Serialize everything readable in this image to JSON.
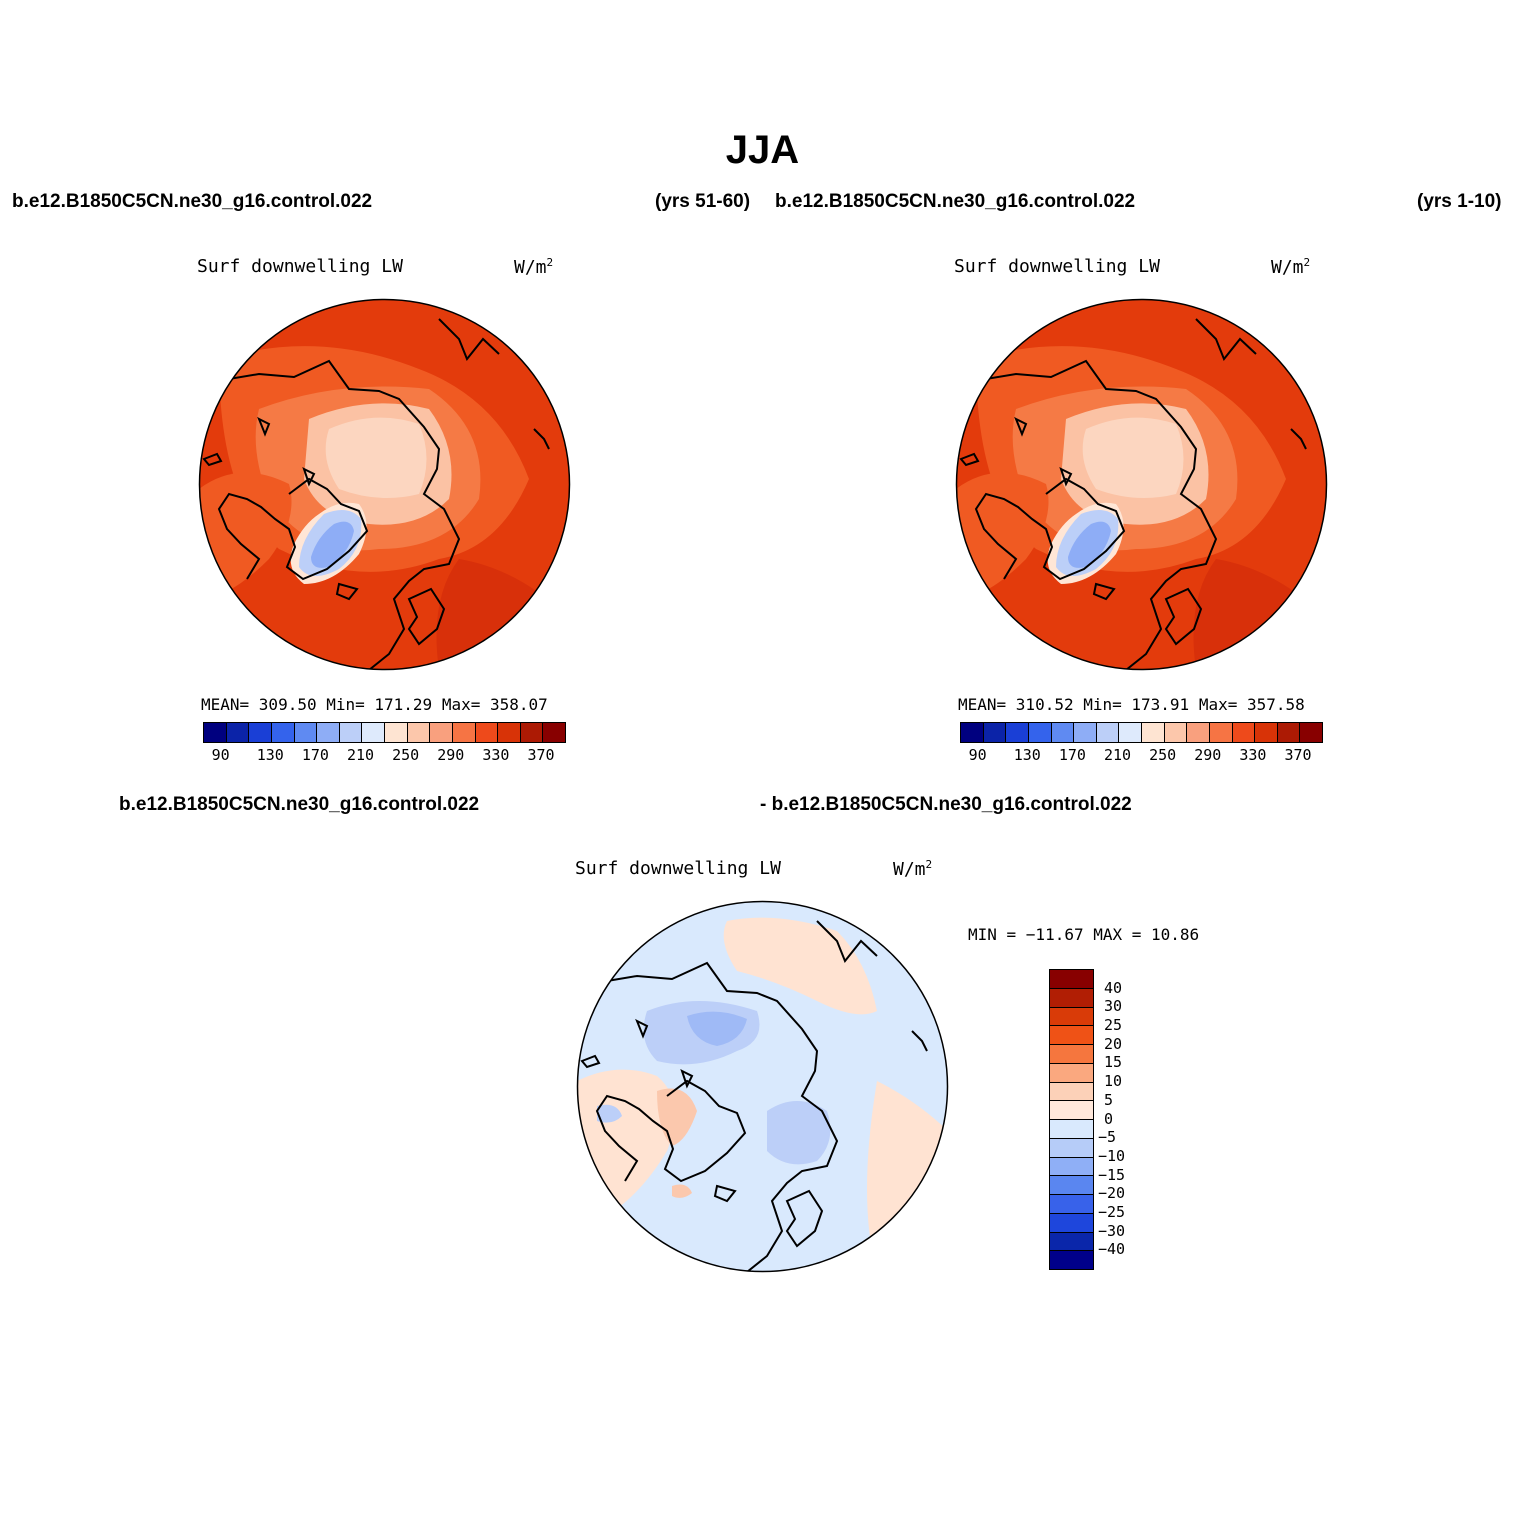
{
  "figure": {
    "title": "JJA"
  },
  "panels": [
    {
      "case": "b.e12.B1850C5CN.ne30_g16.control.022",
      "years": "(yrs 51-60)",
      "variable": "Surf downwelling LW",
      "units": "W/m",
      "units_sup": "2",
      "stats": "MEAN= 309.50   Min= 171.29   Max= 358.07",
      "colorbar_ticks": [
        "90",
        "130",
        "170",
        "210",
        "250",
        "290",
        "330",
        "370"
      ]
    },
    {
      "case": "b.e12.B1850C5CN.ne30_g16.control.022",
      "years": "(yrs 1-10)",
      "variable": "Surf downwelling LW",
      "units": "W/m",
      "units_sup": "2",
      "stats": "MEAN= 310.52   Min= 173.91   Max= 357.58",
      "colorbar_ticks": [
        "90",
        "130",
        "170",
        "210",
        "250",
        "290",
        "330",
        "370"
      ]
    }
  ],
  "difference": {
    "case_left": "b.e12.B1850C5CN.ne30_g16.control.022",
    "case_right": "- b.e12.B1850C5CN.ne30_g16.control.022",
    "variable": "Surf downwelling LW",
    "units": "W/m",
    "units_sup": "2",
    "stats": "MIN = −11.67 MAX =  10.86",
    "colorbar_ticks": [
      "40",
      "30",
      "25",
      "20",
      "15",
      "10",
      "5",
      "0",
      "−5",
      "−10",
      "−15",
      "−20",
      "−25",
      "−30",
      "−40"
    ]
  },
  "colors": {
    "abs_scale": [
      "#00007f",
      "#0b23a8",
      "#1a3fd6",
      "#3463ec",
      "#5f8af2",
      "#8eadf6",
      "#bccff8",
      "#deeafc",
      "#fee4d2",
      "#fcc7ab",
      "#f9a07e",
      "#f67444",
      "#ee4a1b",
      "#d83307",
      "#ac1a04",
      "#880000"
    ],
    "diff_scale": [
      "#880000",
      "#b11e04",
      "#d93b08",
      "#ef5216",
      "#f5763e",
      "#faa87f",
      "#fcd1b8",
      "#ffe8db",
      "#d9e9fd",
      "#b6ccf8",
      "#8faff6",
      "#5a86f0",
      "#3862ea",
      "#1e46dc",
      "#0a26aa",
      "#00008a"
    ]
  }
}
